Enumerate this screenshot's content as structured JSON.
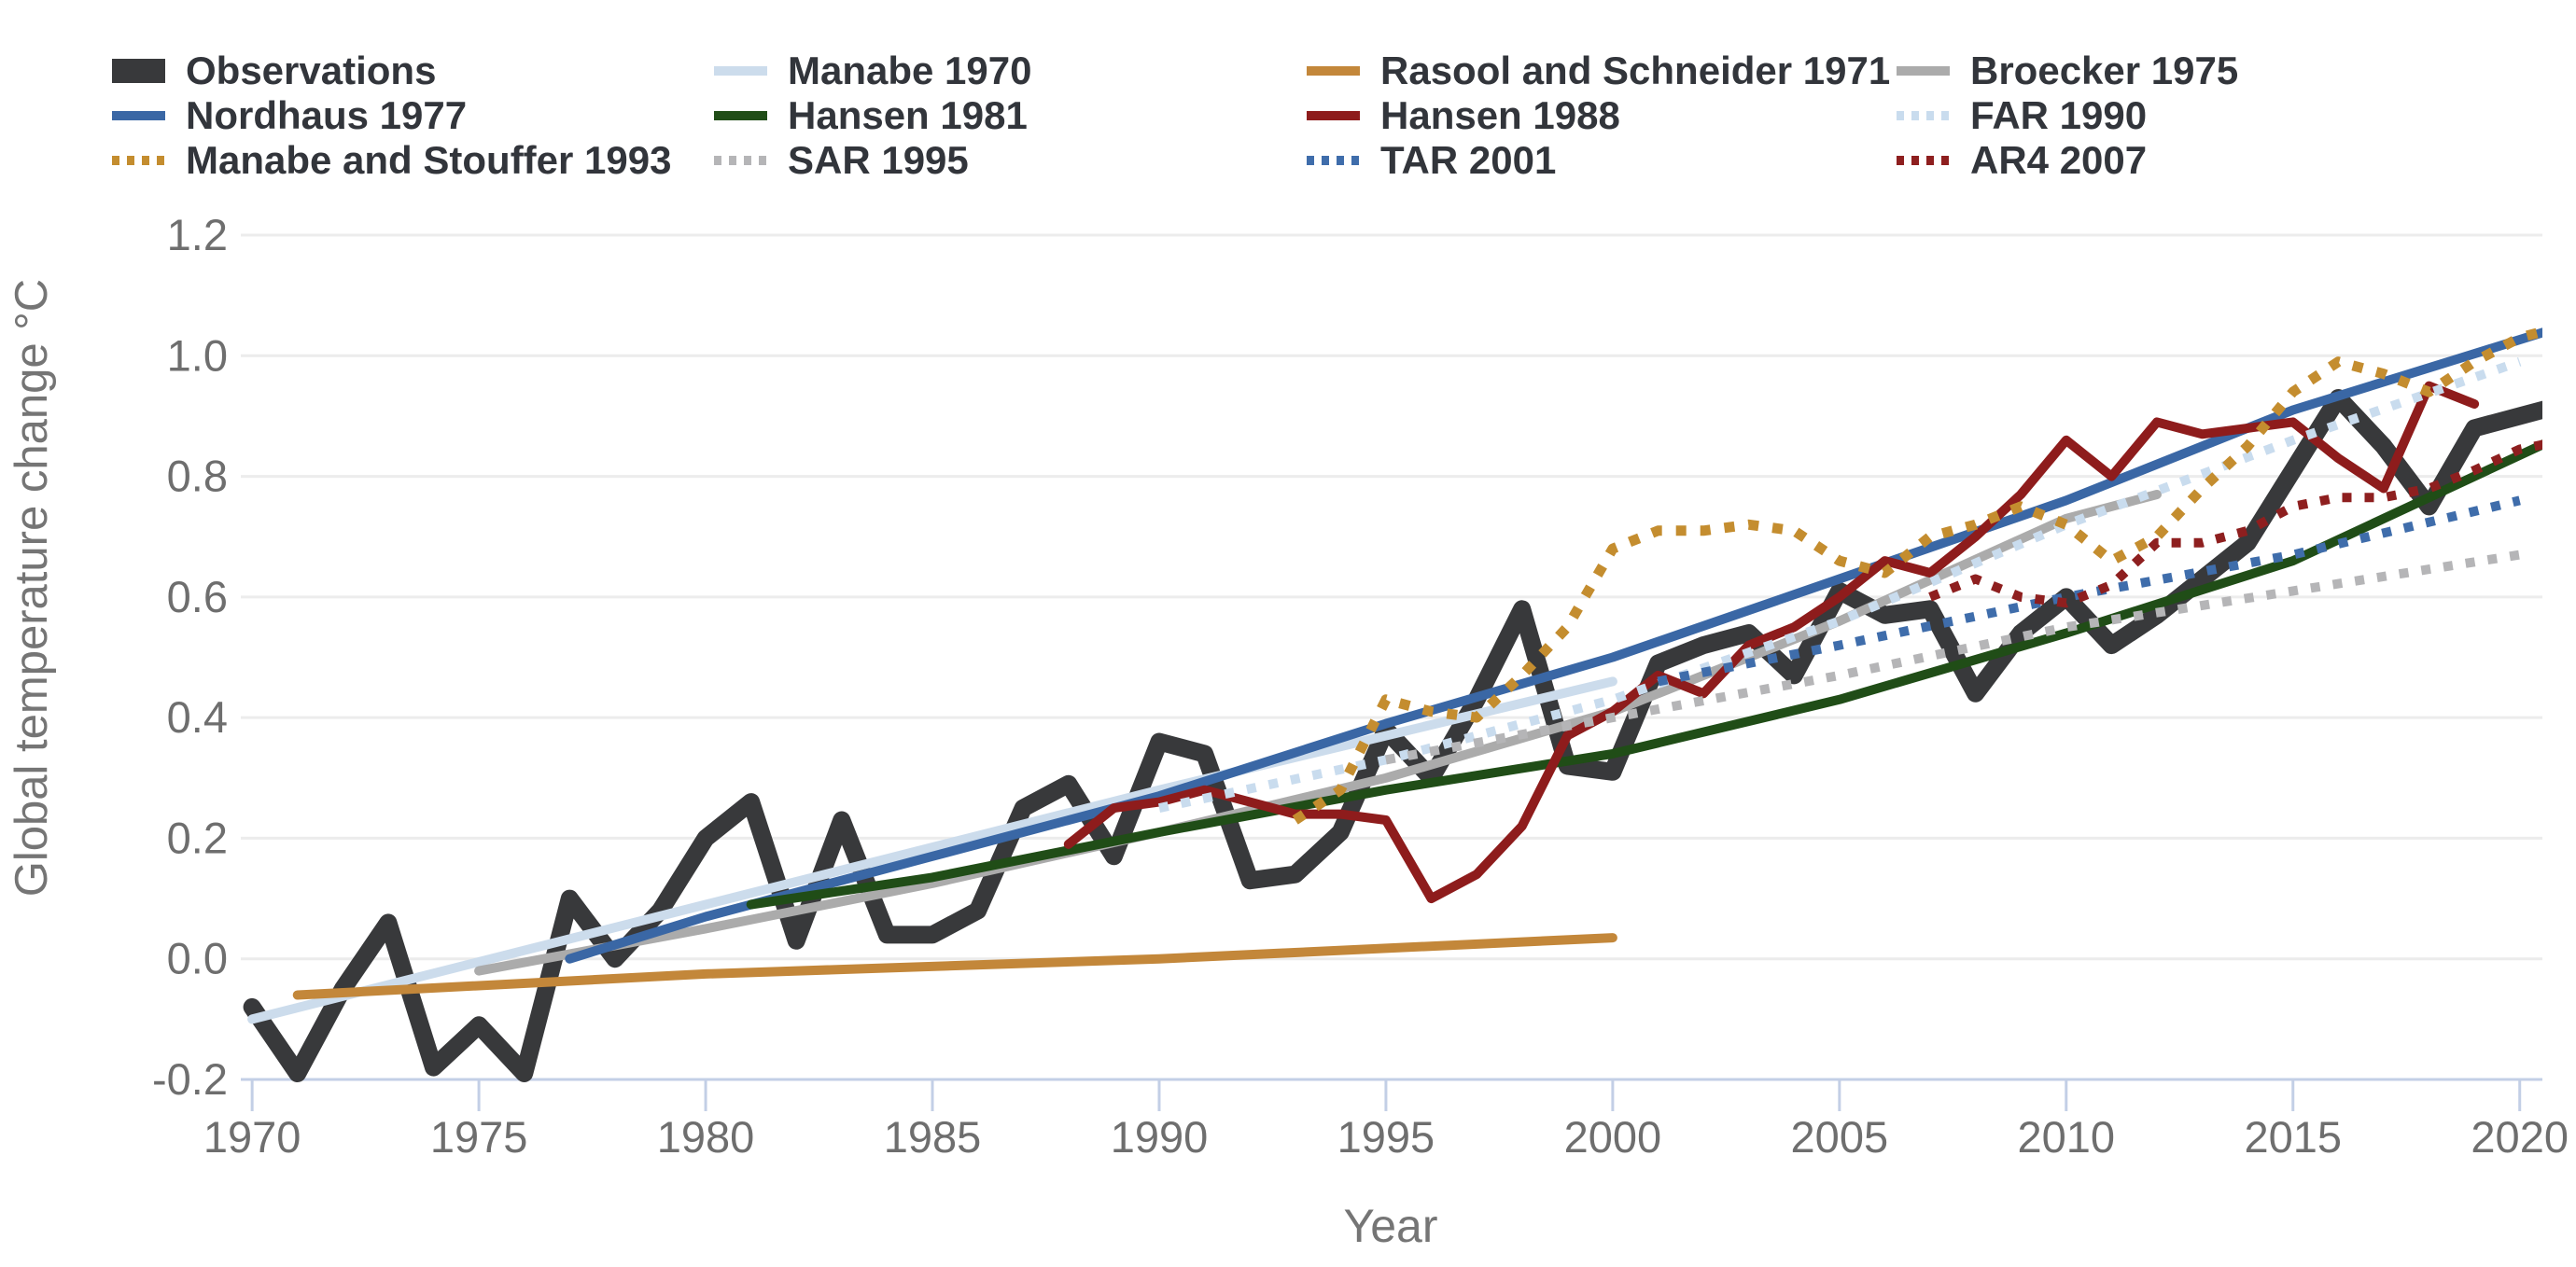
{
  "chart_data": {
    "type": "line",
    "title": "",
    "xlabel": "Year",
    "ylabel": "Global temperature change °C",
    "xlim": [
      1969.75,
      2020.5
    ],
    "ylim": [
      -0.2,
      1.2
    ],
    "x_ticks": [
      1970,
      1975,
      1980,
      1985,
      1990,
      1995,
      2000,
      2005,
      2010,
      2015,
      2020
    ],
    "y_ticks": [
      {
        "v": 1.2,
        "label": "1.2"
      },
      {
        "v": 1.0,
        "label": "1.0"
      },
      {
        "v": 0.8,
        "label": "0.8"
      },
      {
        "v": 0.6,
        "label": "0.6"
      },
      {
        "v": 0.4,
        "label": "0.4"
      },
      {
        "v": 0.2,
        "label": "0.2"
      },
      {
        "v": 0.0,
        "label": "0.0"
      },
      {
        "v": -0.2,
        "label": "-0.2"
      }
    ],
    "grid": "horizontal",
    "legend_position": "top",
    "series": [
      {
        "name": "Observations",
        "color": "#38393b",
        "style": "solid",
        "width": 19,
        "points": [
          [
            1970,
            -0.08
          ],
          [
            1971,
            -0.19
          ],
          [
            1972,
            -0.05
          ],
          [
            1973,
            0.06
          ],
          [
            1974,
            -0.18
          ],
          [
            1975,
            -0.11
          ],
          [
            1976,
            -0.19
          ],
          [
            1977,
            0.1
          ],
          [
            1978,
            0.0
          ],
          [
            1979,
            0.08
          ],
          [
            1980,
            0.2
          ],
          [
            1981,
            0.26
          ],
          [
            1982,
            0.03
          ],
          [
            1983,
            0.23
          ],
          [
            1984,
            0.04
          ],
          [
            1985,
            0.04
          ],
          [
            1986,
            0.08
          ],
          [
            1987,
            0.25
          ],
          [
            1988,
            0.29
          ],
          [
            1989,
            0.17
          ],
          [
            1990,
            0.36
          ],
          [
            1991,
            0.34
          ],
          [
            1992,
            0.13
          ],
          [
            1993,
            0.14
          ],
          [
            1994,
            0.21
          ],
          [
            1995,
            0.38
          ],
          [
            1996,
            0.3
          ],
          [
            1997,
            0.43
          ],
          [
            1998,
            0.58
          ],
          [
            1999,
            0.32
          ],
          [
            2000,
            0.31
          ],
          [
            2001,
            0.49
          ],
          [
            2002,
            0.52
          ],
          [
            2003,
            0.54
          ],
          [
            2004,
            0.47
          ],
          [
            2005,
            0.61
          ],
          [
            2006,
            0.57
          ],
          [
            2007,
            0.58
          ],
          [
            2008,
            0.44
          ],
          [
            2009,
            0.54
          ],
          [
            2010,
            0.6
          ],
          [
            2011,
            0.52
          ],
          [
            2012,
            0.57
          ],
          [
            2013,
            0.63
          ],
          [
            2014,
            0.69
          ],
          [
            2015,
            0.81
          ],
          [
            2016,
            0.93
          ],
          [
            2017,
            0.85
          ],
          [
            2018,
            0.75
          ],
          [
            2019,
            0.88
          ],
          [
            2020,
            0.9
          ],
          [
            2021,
            0.92
          ]
        ]
      },
      {
        "name": "Manabe 1970",
        "color": "#ccdcec",
        "style": "solid",
        "width": 10,
        "points": [
          [
            1970,
            -0.1
          ],
          [
            1980,
            0.09
          ],
          [
            1990,
            0.28
          ],
          [
            2000,
            0.46
          ]
        ]
      },
      {
        "name": "Rasool and Schneider 1971",
        "color": "#c3873a",
        "style": "solid",
        "width": 10,
        "points": [
          [
            1971,
            -0.06
          ],
          [
            1980,
            -0.025
          ],
          [
            1990,
            0.0
          ],
          [
            2000,
            0.035
          ]
        ]
      },
      {
        "name": "Broecker 1975",
        "color": "#ababab",
        "style": "solid",
        "width": 10,
        "points": [
          [
            1975,
            -0.02
          ],
          [
            1980,
            0.05
          ],
          [
            1985,
            0.125
          ],
          [
            1990,
            0.21
          ],
          [
            1995,
            0.3
          ],
          [
            2000,
            0.41
          ],
          [
            2005,
            0.56
          ],
          [
            2010,
            0.73
          ],
          [
            2012,
            0.77
          ]
        ]
      },
      {
        "name": "Nordhaus 1977",
        "color": "#3a67a5",
        "style": "solid",
        "width": 10,
        "points": [
          [
            1977,
            0.0
          ],
          [
            1980,
            0.07
          ],
          [
            1985,
            0.17
          ],
          [
            1990,
            0.27
          ],
          [
            1995,
            0.39
          ],
          [
            2000,
            0.5
          ],
          [
            2005,
            0.63
          ],
          [
            2010,
            0.76
          ],
          [
            2015,
            0.91
          ],
          [
            2021,
            1.05
          ]
        ]
      },
      {
        "name": "Hansen 1981",
        "color": "#204d17",
        "style": "solid",
        "width": 10,
        "points": [
          [
            1981,
            0.09
          ],
          [
            1985,
            0.135
          ],
          [
            1990,
            0.21
          ],
          [
            1995,
            0.28
          ],
          [
            2000,
            0.34
          ],
          [
            2005,
            0.43
          ],
          [
            2010,
            0.54
          ],
          [
            2015,
            0.66
          ],
          [
            2021,
            0.87
          ]
        ]
      },
      {
        "name": "Hansen 1988",
        "color": "#8e1c1c",
        "style": "solid",
        "width": 10,
        "points": [
          [
            1988,
            0.19
          ],
          [
            1989,
            0.25
          ],
          [
            1990,
            0.26
          ],
          [
            1991,
            0.28
          ],
          [
            1992,
            0.26
          ],
          [
            1993,
            0.24
          ],
          [
            1994,
            0.24
          ],
          [
            1995,
            0.23
          ],
          [
            1996,
            0.1
          ],
          [
            1997,
            0.14
          ],
          [
            1998,
            0.22
          ],
          [
            1999,
            0.37
          ],
          [
            2000,
            0.41
          ],
          [
            2001,
            0.47
          ],
          [
            2002,
            0.44
          ],
          [
            2003,
            0.52
          ],
          [
            2004,
            0.55
          ],
          [
            2005,
            0.6
          ],
          [
            2006,
            0.66
          ],
          [
            2007,
            0.64
          ],
          [
            2008,
            0.7
          ],
          [
            2009,
            0.77
          ],
          [
            2010,
            0.86
          ],
          [
            2011,
            0.8
          ],
          [
            2012,
            0.89
          ],
          [
            2013,
            0.87
          ],
          [
            2014,
            0.88
          ],
          [
            2015,
            0.89
          ],
          [
            2016,
            0.83
          ],
          [
            2017,
            0.78
          ],
          [
            2018,
            0.95
          ],
          [
            2019,
            0.92
          ]
        ]
      },
      {
        "name": "FAR 1990",
        "color": "#c9dcee",
        "style": "dotted",
        "width": 10,
        "points": [
          [
            1990,
            0.25
          ],
          [
            1995,
            0.33
          ],
          [
            2000,
            0.43
          ],
          [
            2005,
            0.56
          ],
          [
            2010,
            0.72
          ],
          [
            2015,
            0.86
          ],
          [
            2020,
            0.99
          ]
        ]
      },
      {
        "name": "Manabe and Stouffer 1993",
        "color": "#c48d2f",
        "style": "dotted",
        "width": 11,
        "points": [
          [
            1993,
            0.23
          ],
          [
            1994,
            0.28
          ],
          [
            1995,
            0.43
          ],
          [
            1996,
            0.41
          ],
          [
            1997,
            0.4
          ],
          [
            1998,
            0.47
          ],
          [
            1999,
            0.55
          ],
          [
            2000,
            0.68
          ],
          [
            2001,
            0.71
          ],
          [
            2002,
            0.71
          ],
          [
            2003,
            0.72
          ],
          [
            2004,
            0.71
          ],
          [
            2005,
            0.66
          ],
          [
            2006,
            0.64
          ],
          [
            2007,
            0.7
          ],
          [
            2008,
            0.72
          ],
          [
            2009,
            0.75
          ],
          [
            2010,
            0.72
          ],
          [
            2011,
            0.66
          ],
          [
            2012,
            0.7
          ],
          [
            2013,
            0.78
          ],
          [
            2014,
            0.85
          ],
          [
            2015,
            0.94
          ],
          [
            2016,
            0.99
          ],
          [
            2017,
            0.97
          ],
          [
            2018,
            0.94
          ],
          [
            2019,
            0.99
          ],
          [
            2020,
            1.03
          ],
          [
            2021,
            1.05
          ]
        ]
      },
      {
        "name": "SAR 1995",
        "color": "#b5b5b7",
        "style": "dotted",
        "width": 10,
        "points": [
          [
            1995,
            0.33
          ],
          [
            2000,
            0.4
          ],
          [
            2005,
            0.47
          ],
          [
            2010,
            0.55
          ],
          [
            2015,
            0.61
          ],
          [
            2020,
            0.67
          ]
        ]
      },
      {
        "name": "TAR 2001",
        "color": "#3f6dab",
        "style": "dotted",
        "width": 10,
        "points": [
          [
            2001,
            0.46
          ],
          [
            2005,
            0.52
          ],
          [
            2010,
            0.6
          ],
          [
            2015,
            0.67
          ],
          [
            2020,
            0.76
          ]
        ]
      },
      {
        "name": "AR4 2007",
        "color": "#8e1f1f",
        "style": "dotted",
        "width": 10,
        "points": [
          [
            2007,
            0.6
          ],
          [
            2008,
            0.63
          ],
          [
            2009,
            0.6
          ],
          [
            2010,
            0.59
          ],
          [
            2011,
            0.62
          ],
          [
            2012,
            0.69
          ],
          [
            2013,
            0.69
          ],
          [
            2014,
            0.71
          ],
          [
            2015,
            0.75
          ],
          [
            2016,
            0.765
          ],
          [
            2017,
            0.765
          ],
          [
            2018,
            0.78
          ],
          [
            2019,
            0.81
          ],
          [
            2020,
            0.845
          ],
          [
            2021,
            0.86
          ]
        ]
      }
    ],
    "legend": [
      "Observations",
      "Manabe 1970",
      "Rasool and Schneider 1971",
      "Broecker 1975",
      "Nordhaus 1977",
      "Hansen 1981",
      "Hansen 1988",
      "FAR 1990",
      "Manabe and Stouffer 1993",
      "SAR 1995",
      "TAR 2001",
      "AR4 2007"
    ]
  },
  "colors": {
    "background": "#ffffff",
    "grid": "#ececec",
    "axis": "#c3cfe6",
    "tick_label": "#6e6e6e",
    "axis_title": "#757575",
    "legend_text": "#32353b"
  }
}
